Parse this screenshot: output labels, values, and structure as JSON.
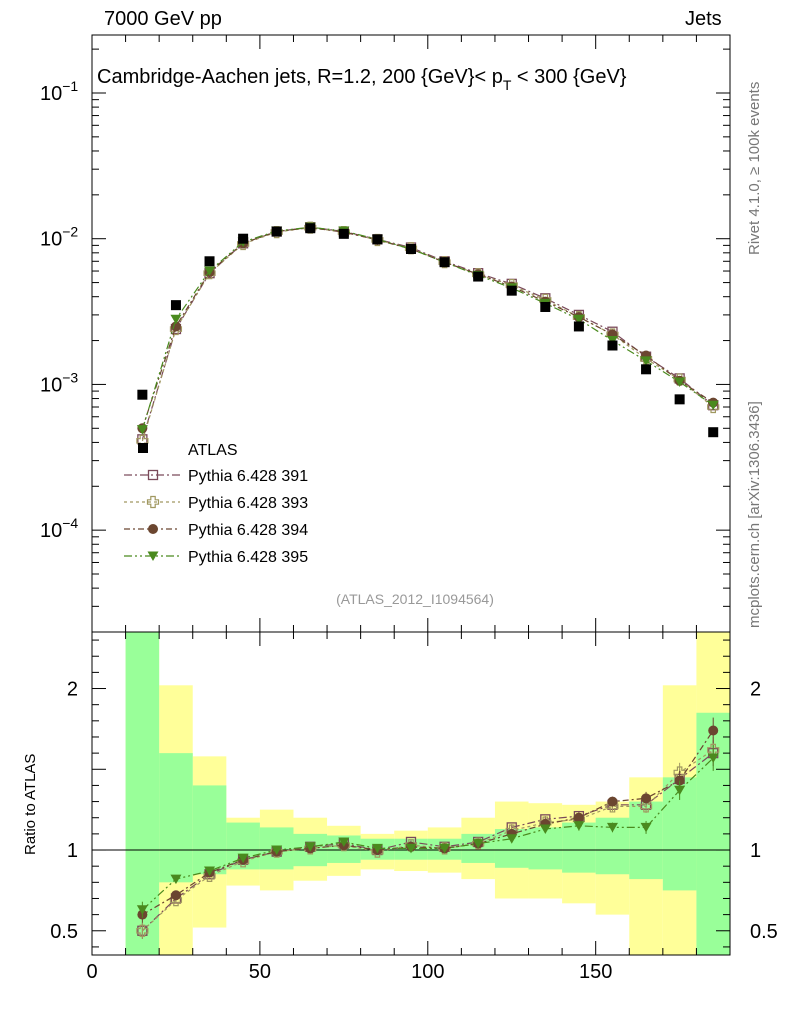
{
  "header": {
    "left": "7000 GeV pp",
    "right": "Jets"
  },
  "side_labels": {
    "rivet": "Rivet 4.1.0, ≥ 100k events",
    "source": "mcplots.cern.ch [arXiv:1306.3436]"
  },
  "chart_data": {
    "type": "scatter",
    "title_prefix": "Cambridge-Aachen jets, R=1.2,  200 {GeV}< p",
    "title_sub": "T",
    "title_suffix": " < 300 {GeV}",
    "analysis_label": "(ATLAS_2012_I1094564)",
    "x": [
      15,
      25,
      35,
      45,
      55,
      65,
      75,
      85,
      95,
      105,
      115,
      125,
      135,
      145,
      155,
      165,
      175,
      185
    ],
    "xlim": [
      0,
      190
    ],
    "x_ticks": [
      0,
      50,
      100,
      150
    ],
    "main_panel": {
      "yscale": "log",
      "ylim": [
        2e-05,
        0.25
      ],
      "y_ticks": [
        {
          "value": 0.1,
          "mantissa": "10",
          "exp": "−1"
        },
        {
          "value": 0.01,
          "mantissa": "10",
          "exp": "−2"
        },
        {
          "value": 0.001,
          "mantissa": "10",
          "exp": "−3"
        },
        {
          "value": 0.0001,
          "mantissa": "10",
          "exp": "−4"
        }
      ],
      "data": {
        "name": "ATLAS",
        "values": [
          0.00085,
          0.0035,
          0.007,
          0.01,
          0.0112,
          0.0118,
          0.0108,
          0.0099,
          0.0085,
          0.0069,
          0.0055,
          0.0044,
          0.0034,
          0.0025,
          0.00185,
          0.00127,
          0.00079,
          0.00047
        ]
      },
      "series": [
        {
          "name": "Pythia 6.428 391",
          "color": "#7a4a5a",
          "marker": "open-square",
          "dash": "8,3,2,3",
          "values": [
            0.00042,
            0.0024,
            0.0058,
            0.0093,
            0.0112,
            0.012,
            0.0112,
            0.0099,
            0.0087,
            0.007,
            0.0058,
            0.0049,
            0.0039,
            0.003,
            0.0023,
            0.00155,
            0.0011,
            0.00072
          ]
        },
        {
          "name": "Pythia 6.428 393",
          "color": "#a09860",
          "marker": "open-cross",
          "dash": "3,3",
          "values": [
            0.00041,
            0.0024,
            0.0058,
            0.0092,
            0.0111,
            0.0119,
            0.0111,
            0.0098,
            0.0086,
            0.0069,
            0.0057,
            0.0048,
            0.0038,
            0.0029,
            0.0022,
            0.0015,
            0.00108,
            0.0007
          ]
        },
        {
          "name": "Pythia 6.428 394",
          "color": "#6b4630",
          "marker": "filled-circle",
          "dash": "6,3,2,3",
          "values": [
            0.0005,
            0.0025,
            0.0059,
            0.0093,
            0.0112,
            0.0119,
            0.0111,
            0.0098,
            0.0085,
            0.0069,
            0.0057,
            0.0047,
            0.0037,
            0.0029,
            0.0022,
            0.00158,
            0.00106,
            0.00075
          ]
        },
        {
          "name": "Pythia 6.428 395",
          "color": "#4a8a1e",
          "marker": "filled-triangle-down",
          "dash": "8,3,2,3,2,3",
          "values": [
            0.00049,
            0.0028,
            0.006,
            0.0095,
            0.0113,
            0.012,
            0.0113,
            0.0099,
            0.0085,
            0.0069,
            0.0056,
            0.0046,
            0.0036,
            0.0028,
            0.002,
            0.00145,
            0.00104,
            0.00072
          ]
        }
      ]
    },
    "ratio_panel": {
      "ylabel": "Ratio to ATLAS",
      "ylim": [
        0.35,
        2.35
      ],
      "y_ticks": [
        0.5,
        1,
        2
      ],
      "bin_edges": [
        10,
        20,
        30,
        40,
        50,
        60,
        70,
        80,
        90,
        100,
        110,
        120,
        130,
        140,
        150,
        160,
        170,
        180,
        190
      ],
      "band_inner": [
        [
          0.35,
          2.35
        ],
        [
          0.8,
          1.6
        ],
        [
          0.85,
          1.4
        ],
        [
          0.88,
          1.17
        ],
        [
          0.88,
          1.14
        ],
        [
          0.9,
          1.1
        ],
        [
          0.92,
          1.09
        ],
        [
          0.94,
          1.07
        ],
        [
          0.94,
          1.07
        ],
        [
          0.94,
          1.07
        ],
        [
          0.92,
          1.1
        ],
        [
          0.89,
          1.13
        ],
        [
          0.88,
          1.14
        ],
        [
          0.86,
          1.17
        ],
        [
          0.85,
          1.2
        ],
        [
          0.82,
          1.3
        ],
        [
          0.75,
          1.45
        ],
        [
          0.35,
          1.85
        ]
      ],
      "band_outer": [
        [
          0.35,
          2.35
        ],
        [
          0.35,
          2.02
        ],
        [
          0.52,
          1.58
        ],
        [
          0.78,
          1.2
        ],
        [
          0.75,
          1.25
        ],
        [
          0.81,
          1.2
        ],
        [
          0.84,
          1.15
        ],
        [
          0.88,
          1.1
        ],
        [
          0.87,
          1.12
        ],
        [
          0.86,
          1.14
        ],
        [
          0.82,
          1.2
        ],
        [
          0.7,
          1.3
        ],
        [
          0.7,
          1.29
        ],
        [
          0.67,
          1.28
        ],
        [
          0.6,
          1.3
        ],
        [
          0.35,
          1.45
        ],
        [
          0.35,
          2.02
        ],
        [
          0.35,
          2.35
        ]
      ],
      "series": [
        {
          "name": "Pythia 6.428 391",
          "values": [
            0.5,
            0.7,
            0.85,
            0.94,
            0.99,
            1.02,
            1.04,
            1.0,
            1.05,
            1.02,
            1.05,
            1.14,
            1.19,
            1.21,
            1.28,
            1.28,
            1.44,
            1.6
          ],
          "errors": [
            0.05,
            0.02,
            0.01,
            0.01,
            0.01,
            0.01,
            0.01,
            0.01,
            0.01,
            0.01,
            0.01,
            0.02,
            0.02,
            0.03,
            0.03,
            0.04,
            0.06,
            0.08
          ]
        },
        {
          "name": "Pythia 6.428 393",
          "values": [
            0.5,
            0.69,
            0.84,
            0.93,
            0.99,
            1.01,
            1.03,
            0.99,
            1.03,
            1.01,
            1.04,
            1.12,
            1.17,
            1.19,
            1.27,
            1.27,
            1.48,
            1.62
          ],
          "errors": [
            0.05,
            0.02,
            0.01,
            0.01,
            0.01,
            0.01,
            0.01,
            0.01,
            0.01,
            0.01,
            0.01,
            0.02,
            0.02,
            0.03,
            0.03,
            0.04,
            0.06,
            0.08
          ]
        },
        {
          "name": "Pythia 6.428 394",
          "values": [
            0.6,
            0.72,
            0.86,
            0.94,
            0.99,
            1.01,
            1.03,
            1.0,
            1.02,
            1.01,
            1.04,
            1.1,
            1.16,
            1.2,
            1.3,
            1.32,
            1.43,
            1.74
          ],
          "errors": [
            0.05,
            0.02,
            0.01,
            0.01,
            0.01,
            0.01,
            0.01,
            0.01,
            0.01,
            0.01,
            0.01,
            0.02,
            0.02,
            0.03,
            0.03,
            0.04,
            0.06,
            0.08
          ]
        },
        {
          "name": "Pythia 6.428 395",
          "values": [
            0.63,
            0.82,
            0.87,
            0.95,
            1.0,
            1.02,
            1.05,
            1.01,
            1.01,
            1.01,
            1.04,
            1.07,
            1.13,
            1.15,
            1.14,
            1.14,
            1.37,
            1.57
          ],
          "errors": [
            0.05,
            0.02,
            0.01,
            0.01,
            0.01,
            0.01,
            0.01,
            0.01,
            0.01,
            0.01,
            0.01,
            0.02,
            0.02,
            0.03,
            0.03,
            0.04,
            0.06,
            0.08
          ]
        }
      ]
    }
  }
}
